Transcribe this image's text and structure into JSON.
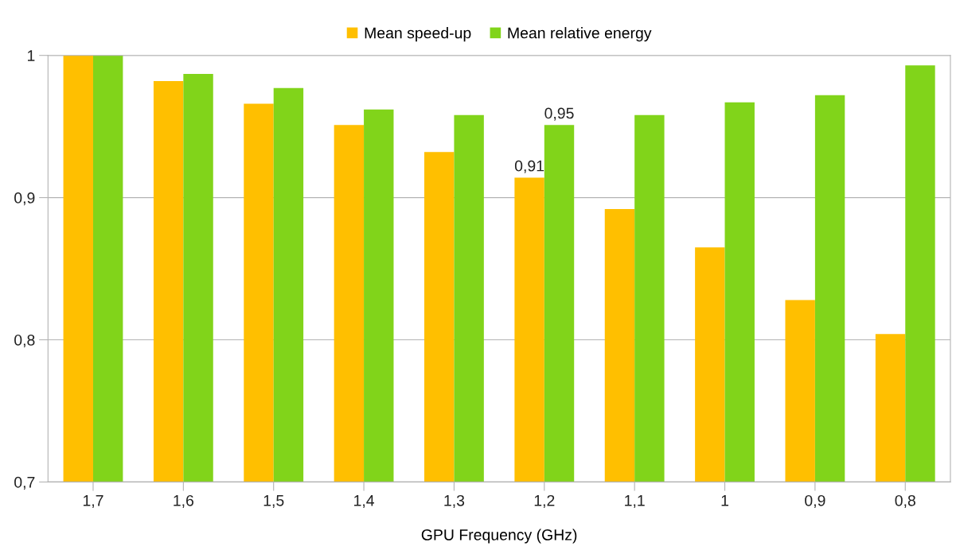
{
  "chart_data": {
    "type": "bar",
    "xlabel": "GPU Frequency (GHz)",
    "categories": [
      "1,7",
      "1,6",
      "1,5",
      "1,4",
      "1,3",
      "1,2",
      "1,1",
      "1",
      "0,9",
      "0,8"
    ],
    "series": [
      {
        "name": "Mean speed-up",
        "color": "#ffbf00",
        "values": [
          1.0,
          0.982,
          0.966,
          0.951,
          0.932,
          0.914,
          0.892,
          0.865,
          0.828,
          0.804
        ],
        "value_labels": [
          null,
          null,
          null,
          null,
          null,
          "0,91",
          null,
          null,
          null,
          null
        ]
      },
      {
        "name": "Mean relative energy",
        "color": "#81d41a",
        "values": [
          1.0,
          0.987,
          0.977,
          0.962,
          0.958,
          0.951,
          0.958,
          0.967,
          0.972,
          0.993
        ],
        "value_labels": [
          null,
          null,
          null,
          null,
          null,
          "0,95",
          null,
          null,
          null,
          null
        ]
      }
    ],
    "ylim": [
      0.7,
      1.0
    ],
    "yticks": [
      {
        "value": 0.7,
        "label": "0,7"
      },
      {
        "value": 0.8,
        "label": "0,8"
      },
      {
        "value": 0.9,
        "label": "0,9"
      },
      {
        "value": 1.0,
        "label": "1"
      }
    ],
    "grid": "y",
    "legend": "top"
  }
}
